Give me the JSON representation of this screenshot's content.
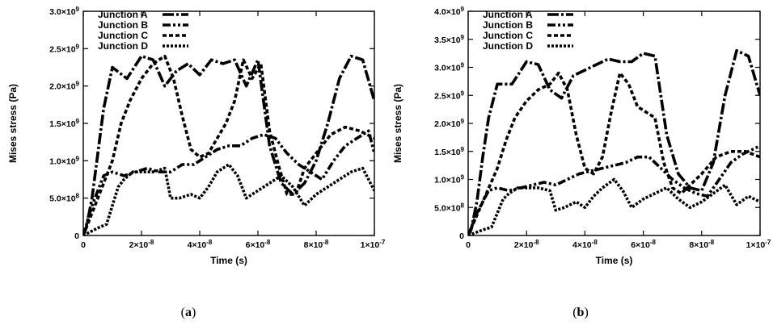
{
  "panels": [
    {
      "label_open": "(",
      "label_letter": "a",
      "label_close": ")"
    },
    {
      "label_open": "(",
      "label_letter": "b",
      "label_close": ")"
    }
  ],
  "chart_data": [
    {
      "type": "line",
      "xlabel": "Time (s)",
      "ylabel": "Mises stress (Pa)",
      "xlim": [
        0,
        1e-07
      ],
      "ylim": [
        0,
        3000000000.0
      ],
      "x_ticks": [
        {
          "m": "0",
          "e": ""
        },
        {
          "m": "2×10",
          "e": "-8"
        },
        {
          "m": "4×10",
          "e": "-8"
        },
        {
          "m": "6×10",
          "e": "-8"
        },
        {
          "m": "8×10",
          "e": "-8"
        },
        {
          "m": "1×10",
          "e": "-7"
        }
      ],
      "y_ticks": [
        {
          "m": "0",
          "e": ""
        },
        {
          "m": "5.0×10",
          "e": "8"
        },
        {
          "m": "1.0×10",
          "e": "9"
        },
        {
          "m": "1.5×10",
          "e": "9"
        },
        {
          "m": "2.0×10",
          "e": "9"
        },
        {
          "m": "2.5×10",
          "e": "9"
        },
        {
          "m": "3.0×10",
          "e": "9"
        }
      ],
      "legend_position": "top-left",
      "grid": false,
      "series": [
        {
          "name": "Junction A",
          "dash": "14,3,3,3",
          "x": [
            0,
            1e-09,
            3e-09,
            5e-09,
            7e-09,
            1e-08,
            1.5e-08,
            2e-08,
            2.4e-08,
            2.8e-08,
            3.2e-08,
            3.6e-08,
            4e-08,
            4.4e-08,
            4.8e-08,
            5.2e-08,
            5.6e-08,
            6e-08,
            6.4e-08,
            6.8e-08,
            7.2e-08,
            7.6e-08,
            8e-08,
            8.4e-08,
            8.8e-08,
            9.2e-08,
            9.6e-08,
            1e-07
          ],
          "y": [
            0,
            100000000.0,
            500000000.0,
            1100000000.0,
            1700000000.0,
            2250000000.0,
            2100000000.0,
            2400000000.0,
            2350000000.0,
            2000000000.0,
            2200000000.0,
            2300000000.0,
            2150000000.0,
            2350000000.0,
            2300000000.0,
            2350000000.0,
            2000000000.0,
            2350000000.0,
            1200000000.0,
            700000000.0,
            550000000.0,
            700000000.0,
            1000000000.0,
            1500000000.0,
            2100000000.0,
            2400000000.0,
            2350000000.0,
            1800000000.0
          ]
        },
        {
          "name": "Junction B",
          "dash": "10,3,3,3,3,3",
          "x": [
            0,
            3e-09,
            5e-09,
            7e-09,
            1e-08,
            1.4e-08,
            1.8e-08,
            2.2e-08,
            2.6e-08,
            3e-08,
            3.4e-08,
            3.8e-08,
            4.2e-08,
            4.6e-08,
            5e-08,
            5.4e-08,
            5.8e-08,
            6.2e-08,
            6.6e-08,
            7e-08,
            7.4e-08,
            7.8e-08,
            8.2e-08,
            8.6e-08,
            9e-08,
            9.4e-08,
            9.8e-08,
            1e-07
          ],
          "y": [
            0,
            400000000.0,
            600000000.0,
            800000000.0,
            850000000.0,
            800000000.0,
            850000000.0,
            900000000.0,
            850000000.0,
            850000000.0,
            950000000.0,
            950000000.0,
            1050000000.0,
            1150000000.0,
            1200000000.0,
            1200000000.0,
            1300000000.0,
            1350000000.0,
            1300000000.0,
            1100000000.0,
            950000000.0,
            850000000.0,
            750000000.0,
            1000000000.0,
            1200000000.0,
            1300000000.0,
            1400000000.0,
            1100000000.0
          ]
        },
        {
          "name": "Junction C",
          "dash": "5,3",
          "x": [
            0,
            5e-09,
            1e-08,
            1.3e-08,
            1.6e-08,
            2e-08,
            2.4e-08,
            2.8e-08,
            3.1e-08,
            3.4e-08,
            3.7e-08,
            4e-08,
            4.3e-08,
            4.6e-08,
            4.9e-08,
            5.2e-08,
            5.5e-08,
            5.8e-08,
            6.1e-08,
            6.4e-08,
            6.7e-08,
            7e-08,
            7.3e-08,
            7.6e-08,
            8e-08,
            8.5e-08,
            9e-08,
            9.5e-08,
            1e-07
          ],
          "y": [
            0,
            500000000.0,
            1000000000.0,
            1500000000.0,
            1800000000.0,
            2100000000.0,
            2300000000.0,
            2400000000.0,
            2100000000.0,
            1600000000.0,
            1150000000.0,
            1050000000.0,
            1100000000.0,
            1300000000.0,
            1500000000.0,
            1800000000.0,
            2350000000.0,
            2100000000.0,
            2300000000.0,
            1400000000.0,
            950000000.0,
            550000000.0,
            550000000.0,
            900000000.0,
            1100000000.0,
            1350000000.0,
            1450000000.0,
            1400000000.0,
            1300000000.0
          ]
        },
        {
          "name": "Junction D",
          "dash": "3,2",
          "x": [
            0,
            5e-09,
            8e-09,
            1e-08,
            1.2e-08,
            1.4e-08,
            1.7e-08,
            2e-08,
            2.4e-08,
            2.8e-08,
            3e-08,
            3.3e-08,
            3.7e-08,
            4e-08,
            4.3e-08,
            4.6e-08,
            5e-08,
            5.3e-08,
            5.6e-08,
            6e-08,
            6.4e-08,
            6.8e-08,
            7.2e-08,
            7.6e-08,
            8e-08,
            8.4e-08,
            8.8e-08,
            9.2e-08,
            9.6e-08,
            1e-07
          ],
          "y": [
            0,
            100000000.0,
            150000000.0,
            400000000.0,
            650000000.0,
            750000000.0,
            850000000.0,
            850000000.0,
            850000000.0,
            900000000.0,
            500000000.0,
            500000000.0,
            550000000.0,
            500000000.0,
            650000000.0,
            850000000.0,
            950000000.0,
            800000000.0,
            500000000.0,
            600000000.0,
            700000000.0,
            800000000.0,
            650000000.0,
            400000000.0,
            550000000.0,
            650000000.0,
            750000000.0,
            850000000.0,
            900000000.0,
            600000000.0
          ]
        }
      ]
    },
    {
      "type": "line",
      "xlabel": "Time (s)",
      "ylabel": "Mises stress (Pa)",
      "xlim": [
        0,
        1e-07
      ],
      "ylim": [
        0,
        4000000000.0
      ],
      "x_ticks": [
        {
          "m": "0",
          "e": ""
        },
        {
          "m": "2×10",
          "e": "-8"
        },
        {
          "m": "4×10",
          "e": "-8"
        },
        {
          "m": "6×10",
          "e": "-8"
        },
        {
          "m": "8×10",
          "e": "-8"
        },
        {
          "m": "1×10",
          "e": "-7"
        }
      ],
      "y_ticks": [
        {
          "m": "0",
          "e": ""
        },
        {
          "m": "5.0×10",
          "e": "8"
        },
        {
          "m": "1.0×10",
          "e": "9"
        },
        {
          "m": "1.5×10",
          "e": "9"
        },
        {
          "m": "2.0×10",
          "e": "9"
        },
        {
          "m": "2.5×10",
          "e": "9"
        },
        {
          "m": "3.0×10",
          "e": "9"
        },
        {
          "m": "3.5×10",
          "e": "9"
        },
        {
          "m": "4.0×10",
          "e": "9"
        }
      ],
      "legend_position": "top-left",
      "grid": false,
      "series": [
        {
          "name": "Junction A",
          "dash": "14,3,3,3",
          "x": [
            0,
            1e-09,
            3e-09,
            5e-09,
            7e-09,
            1e-08,
            1.5e-08,
            2e-08,
            2.4e-08,
            2.8e-08,
            3.2e-08,
            3.6e-08,
            4e-08,
            4.4e-08,
            4.8e-08,
            5.2e-08,
            5.6e-08,
            6e-08,
            6.4e-08,
            6.8e-08,
            7.2e-08,
            7.6e-08,
            8e-08,
            8.4e-08,
            8.8e-08,
            9.2e-08,
            9.6e-08,
            1e-07
          ],
          "y": [
            0,
            100000000.0,
            600000000.0,
            1400000000.0,
            2100000000.0,
            2700000000.0,
            2700000000.0,
            3100000000.0,
            3050000000.0,
            2600000000.0,
            2450000000.0,
            2850000000.0,
            2950000000.0,
            3050000000.0,
            3150000000.0,
            3100000000.0,
            3100000000.0,
            3250000000.0,
            3200000000.0,
            1800000000.0,
            1100000000.0,
            850000000.0,
            800000000.0,
            1300000000.0,
            2500000000.0,
            3300000000.0,
            3200000000.0,
            2500000000.0
          ]
        },
        {
          "name": "Junction B",
          "dash": "10,3,3,3,3,3",
          "x": [
            0,
            3e-09,
            5e-09,
            7e-09,
            1e-08,
            1.4e-08,
            1.8e-08,
            2.2e-08,
            2.6e-08,
            3e-08,
            3.4e-08,
            3.8e-08,
            4.2e-08,
            4.6e-08,
            5e-08,
            5.4e-08,
            5.8e-08,
            6.2e-08,
            6.6e-08,
            7e-08,
            7.4e-08,
            7.8e-08,
            8.2e-08,
            8.6e-08,
            9e-08,
            9.4e-08,
            9.8e-08,
            1e-07
          ],
          "y": [
            0,
            400000000.0,
            600000000.0,
            800000000.0,
            850000000.0,
            800000000.0,
            850000000.0,
            900000000.0,
            950000000.0,
            900000000.0,
            1000000000.0,
            1100000000.0,
            1150000000.0,
            1200000000.0,
            1250000000.0,
            1300000000.0,
            1400000000.0,
            1400000000.0,
            1200000000.0,
            1000000000.0,
            850000000.0,
            750000000.0,
            700000000.0,
            1000000000.0,
            1300000000.0,
            1450000000.0,
            1550000000.0,
            1600000000.0
          ]
        },
        {
          "name": "Junction C",
          "dash": "5,3",
          "x": [
            0,
            5e-09,
            1e-08,
            1.3e-08,
            1.6e-08,
            2e-08,
            2.4e-08,
            2.8e-08,
            3.1e-08,
            3.4e-08,
            3.7e-08,
            4e-08,
            4.3e-08,
            4.6e-08,
            4.9e-08,
            5.2e-08,
            5.5e-08,
            5.8e-08,
            6.1e-08,
            6.4e-08,
            6.7e-08,
            7e-08,
            7.3e-08,
            7.6e-08,
            8e-08,
            8.5e-08,
            9e-08,
            9.5e-08,
            1e-07
          ],
          "y": [
            0,
            600000000.0,
            1200000000.0,
            1700000000.0,
            2100000000.0,
            2400000000.0,
            2600000000.0,
            2700000000.0,
            2900000000.0,
            2600000000.0,
            1800000000.0,
            1200000000.0,
            1100000000.0,
            1400000000.0,
            2200000000.0,
            2900000000.0,
            2700000000.0,
            2300000000.0,
            2200000000.0,
            2100000000.0,
            1300000000.0,
            850000000.0,
            750000000.0,
            900000000.0,
            1100000000.0,
            1400000000.0,
            1500000000.0,
            1500000000.0,
            1400000000.0
          ]
        },
        {
          "name": "Junction D",
          "dash": "3,2",
          "x": [
            0,
            5e-09,
            8e-09,
            1e-08,
            1.2e-08,
            1.4e-08,
            1.7e-08,
            2e-08,
            2.4e-08,
            2.8e-08,
            3e-08,
            3.3e-08,
            3.7e-08,
            4e-08,
            4.3e-08,
            4.6e-08,
            5e-08,
            5.3e-08,
            5.6e-08,
            6e-08,
            6.4e-08,
            6.8e-08,
            7.2e-08,
            7.6e-08,
            8e-08,
            8.4e-08,
            8.8e-08,
            9.2e-08,
            9.6e-08,
            1e-07
          ],
          "y": [
            0,
            100000000.0,
            150000000.0,
            400000000.0,
            650000000.0,
            750000000.0,
            850000000.0,
            850000000.0,
            850000000.0,
            800000000.0,
            450000000.0,
            500000000.0,
            600000000.0,
            500000000.0,
            700000000.0,
            850000000.0,
            1000000000.0,
            800000000.0,
            500000000.0,
            650000000.0,
            750000000.0,
            850000000.0,
            650000000.0,
            500000000.0,
            600000000.0,
            750000000.0,
            900000000.0,
            550000000.0,
            700000000.0,
            600000000.0
          ]
        }
      ]
    }
  ]
}
